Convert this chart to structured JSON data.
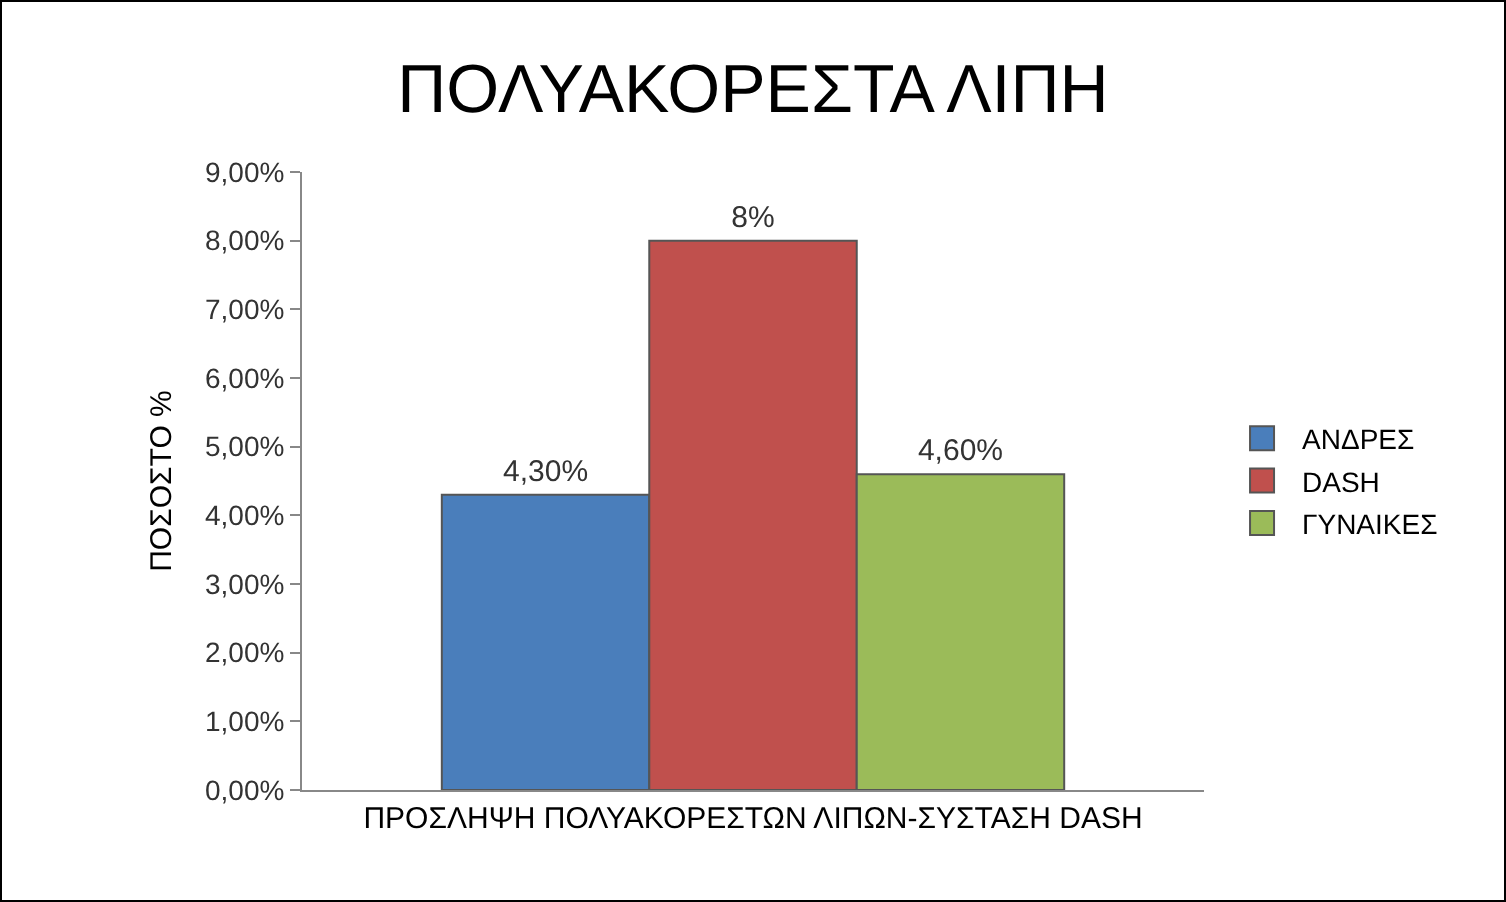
{
  "chart_data": {
    "type": "bar",
    "title": "ΠΟΛΥΑΚΟΡΕΣΤΑ ΛΙΠΗ",
    "ylabel": "ΠΟΣΟΣΤΟ %",
    "categories": [
      "ΠΡΟΣΛΗΨΗ ΠΟΛΥΑΚΟΡΕΣΤΩΝ ΛΙΠΩΝ-ΣΥΣΤΑΣΗ DASH"
    ],
    "series": [
      {
        "name": "ΑΝΔΡΕΣ",
        "color": "#4a7ebb",
        "values": [
          4.3
        ],
        "value_labels": [
          "4,30%"
        ]
      },
      {
        "name": "DASH",
        "color": "#c0504d",
        "values": [
          8
        ],
        "value_labels": [
          "8%"
        ]
      },
      {
        "name": "ΓΥΝΑΙΚΕΣ",
        "color": "#9bbb59",
        "values": [
          4.6
        ],
        "value_labels": [
          "4,60%"
        ]
      }
    ],
    "ylim": [
      0,
      9
    ],
    "yticks": [
      {
        "value": 0,
        "label": "0,00%"
      },
      {
        "value": 1,
        "label": "1,00%"
      },
      {
        "value": 2,
        "label": "2,00%"
      },
      {
        "value": 3,
        "label": "3,00%"
      },
      {
        "value": 4,
        "label": "4,00%"
      },
      {
        "value": 5,
        "label": "5,00%"
      },
      {
        "value": 6,
        "label": "6,00%"
      },
      {
        "value": 7,
        "label": "7,00%"
      },
      {
        "value": 8,
        "label": "8,00%"
      },
      {
        "value": 9,
        "label": "9,00%"
      }
    ],
    "legend": "right",
    "grid": false
  }
}
